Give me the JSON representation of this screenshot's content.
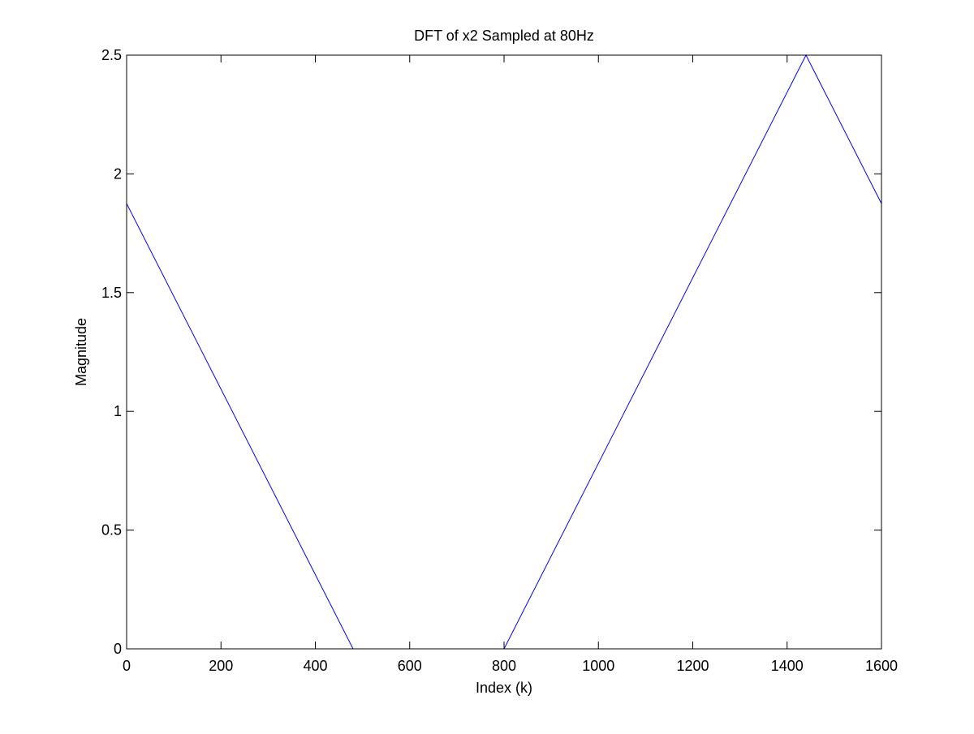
{
  "chart_data": {
    "type": "line",
    "title": "DFT of x2 Sampled at 80Hz",
    "xlabel": "Index (k)",
    "ylabel": "Magnitude",
    "xlim": [
      0,
      1600
    ],
    "ylim": [
      0,
      2.5
    ],
    "xticks": [
      0,
      200,
      400,
      600,
      800,
      1000,
      1200,
      1400,
      1600
    ],
    "yticks": [
      0,
      0.5,
      1,
      1.5,
      2,
      2.5
    ],
    "xtick_labels": [
      "0",
      "200",
      "400",
      "600",
      "800",
      "1000",
      "1200",
      "1400",
      "1600"
    ],
    "ytick_labels": [
      "0",
      "0.5",
      "1",
      "1.5",
      "2",
      "2.5"
    ],
    "grid": false,
    "legend": "none",
    "series": [
      {
        "color": "#0000ff",
        "x": [
          0,
          480,
          800,
          1440,
          1600
        ],
        "y": [
          1.875,
          0,
          0,
          2.5,
          1.875
        ]
      }
    ]
  }
}
